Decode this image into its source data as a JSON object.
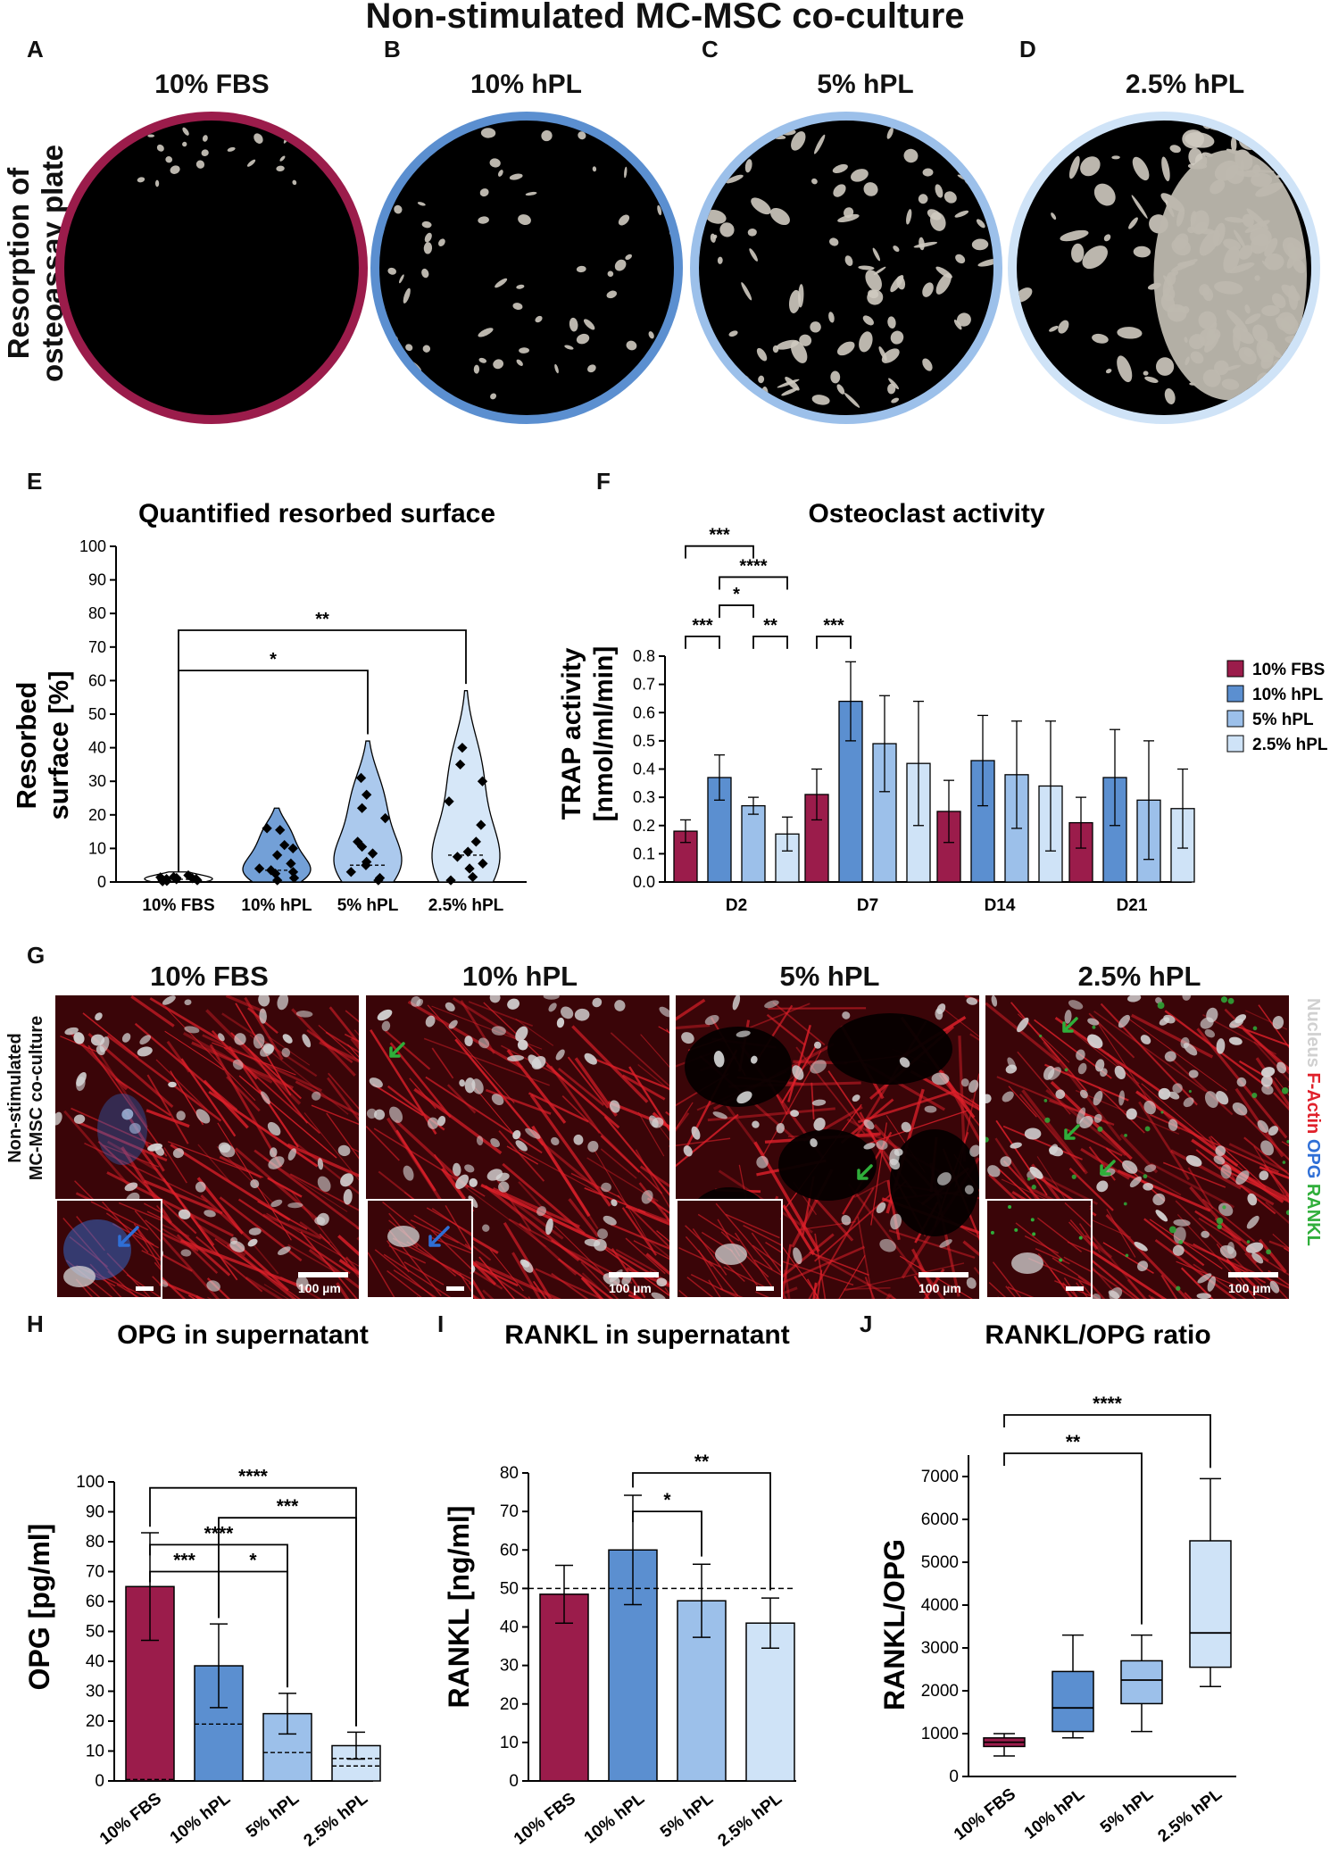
{
  "figure_title": "Non-stimulated MC-MSC co-culture",
  "panel_labels": {
    "A": "A",
    "B": "B",
    "C": "C",
    "D": "D",
    "E": "E",
    "F": "F",
    "G": "G",
    "H": "H",
    "I": "I",
    "J": "J"
  },
  "groups": [
    "10% FBS",
    "10% hPL",
    "5% hPL",
    "2.5% hPL"
  ],
  "colors": {
    "fbs": "#9b1c4b",
    "hpl10": "#5b8fd0",
    "hpl5": "#9cc0ea",
    "hpl25": "#cfe3f7",
    "axis": "#000000"
  },
  "row_a": {
    "side_label_line1": "Resorption of",
    "side_label_line2": "osteoassay plate",
    "dish_titles": [
      "10% FBS",
      "10% hPL",
      "5% hPL",
      "2.5% hPL"
    ],
    "resorption_fraction": [
      0.03,
      0.18,
      0.38,
      0.55
    ]
  },
  "row_g": {
    "side_label_line1": "Non-stimulated",
    "side_label_line2": "MC-MSC co-culture",
    "titles": [
      "10% FBS",
      "10% hPL",
      "5% hPL",
      "2.5% hPL"
    ],
    "scale_text": "100 µm",
    "stain_legend": {
      "nucleus": "Nucleus",
      "factin": "F-Actin",
      "opg": "OPG",
      "rankl": "RANKL"
    },
    "stain_colors": {
      "nucleus": "#d6d6d6",
      "factin": "#e0202a",
      "opg": "#2f6fd6",
      "rankl": "#2fae3a"
    }
  },
  "chart_data": [
    {
      "id": "E",
      "type": "violin",
      "title": "Quantified resorbed surface",
      "ylabel_line1": "Resorbed",
      "ylabel_line2": "surface [%]",
      "categories": [
        "10% FBS",
        "10% hPL",
        "5% hPL",
        "2.5% hPL"
      ],
      "ylim": [
        0,
        100
      ],
      "yticks": [
        0,
        10,
        20,
        30,
        40,
        50,
        60,
        70,
        80,
        90,
        100
      ],
      "points": [
        [
          0.3,
          0.6,
          0.9,
          1.2,
          1.5,
          0.8,
          1.1,
          0.5,
          1.4,
          2.0,
          0.2,
          0.9
        ],
        [
          0.5,
          1.2,
          2.5,
          3.0,
          4.0,
          5.5,
          8.0,
          10.0,
          11.0,
          15.5,
          16.0,
          3.5
        ],
        [
          0.5,
          1.2,
          3.0,
          6.0,
          8.5,
          10.5,
          12.0,
          19.0,
          22.0,
          26.0,
          31.0,
          5.0
        ],
        [
          0.5,
          1.5,
          4.0,
          5.5,
          7.5,
          12.0,
          17.0,
          24.0,
          30.0,
          35.0,
          40.0,
          9.0
        ]
      ],
      "violin_range": [
        [
          0,
          3
        ],
        [
          0,
          22
        ],
        [
          0,
          42
        ],
        [
          0,
          57
        ]
      ],
      "medians": [
        0.8,
        3.5,
        5.0,
        8.0
      ],
      "significance": [
        {
          "from": 0,
          "to": 2,
          "label": "*",
          "y": 63
        },
        {
          "from": 0,
          "to": 3,
          "label": "**",
          "y": 75
        }
      ]
    },
    {
      "id": "F",
      "type": "bar",
      "title": "Osteoclast activity",
      "ylabel_line1": "TRAP activity",
      "ylabel_line2": "[nmol/ml/min]",
      "categories": [
        "D2",
        "D7",
        "D14",
        "D21"
      ],
      "ylim": [
        0,
        0.8
      ],
      "yticks": [
        0.0,
        0.1,
        0.2,
        0.3,
        0.4,
        0.5,
        0.6,
        0.7,
        0.8
      ],
      "series": [
        {
          "name": "10% FBS",
          "values": [
            0.18,
            0.31,
            0.25,
            0.21
          ],
          "errors": [
            0.04,
            0.09,
            0.11,
            0.09
          ]
        },
        {
          "name": "10% hPL",
          "values": [
            0.37,
            0.64,
            0.43,
            0.37
          ],
          "errors": [
            0.08,
            0.14,
            0.16,
            0.17
          ]
        },
        {
          "name": "5% hPL",
          "values": [
            0.27,
            0.49,
            0.38,
            0.29
          ],
          "errors": [
            0.03,
            0.17,
            0.19,
            0.21
          ]
        },
        {
          "name": "2.5% hPL",
          "values": [
            0.17,
            0.42,
            0.34,
            0.26
          ],
          "errors": [
            0.06,
            0.22,
            0.23,
            0.14
          ]
        }
      ],
      "significance": [
        {
          "cat": 0,
          "from": 0,
          "to": 1,
          "label": "***",
          "level": 0.87
        },
        {
          "cat": 0,
          "from": 2,
          "to": 3,
          "label": "**",
          "level": 0.87
        },
        {
          "cat": 0,
          "from": 1,
          "to": 2,
          "label": "*",
          "level": 0.98
        },
        {
          "cat": 0,
          "from": 1,
          "to": 3,
          "label": "****",
          "level": 1.08
        },
        {
          "cat": 0,
          "from": 0,
          "to": 2,
          "label": "***",
          "level": 1.19
        },
        {
          "cat": 1,
          "from": 0,
          "to": 1,
          "label": "***",
          "level": 0.87
        }
      ],
      "legend": [
        "10% FBS",
        "10% hPL",
        "5% hPL",
        "2.5% hPL"
      ]
    },
    {
      "id": "H",
      "type": "bar",
      "title": "OPG in supernatant",
      "ylabel": "OPG [pg/ml]",
      "categories": [
        "10% FBS",
        "10% hPL",
        "5% hPL",
        "2.5% hPL"
      ],
      "ylim": [
        0,
        100
      ],
      "yticks": [
        0,
        10,
        20,
        30,
        40,
        50,
        60,
        70,
        80,
        90,
        100
      ],
      "values": [
        65.0,
        38.5,
        22.5,
        11.8
      ],
      "errors": [
        18.0,
        14.0,
        6.8,
        4.5
      ],
      "dashed_ref": [
        0.5,
        19.0,
        9.5,
        7.5
      ],
      "dashed_ref2": [
        null,
        null,
        null,
        5.0
      ],
      "significance": [
        {
          "from": 0,
          "to": 1,
          "label": "***",
          "y": 70
        },
        {
          "from": 1,
          "to": 2,
          "label": "*",
          "y": 70
        },
        {
          "from": 0,
          "to": 2,
          "label": "****",
          "y": 79
        },
        {
          "from": 1,
          "to": 3,
          "label": "***",
          "y": 88
        },
        {
          "from": 0,
          "to": 3,
          "label": "****",
          "y": 98
        }
      ]
    },
    {
      "id": "I",
      "type": "bar",
      "title": "RANKL in supernatant",
      "ylabel": "RANKL [ng/ml]",
      "categories": [
        "10% FBS",
        "10% hPL",
        "5% hPL",
        "2.5% hPL"
      ],
      "ylim": [
        0,
        80
      ],
      "yticks": [
        0,
        10,
        20,
        30,
        40,
        50,
        60,
        70,
        80
      ],
      "values": [
        48.5,
        60.0,
        46.8,
        41.0
      ],
      "errors": [
        7.5,
        14.2,
        9.5,
        6.5
      ],
      "reference_line": 50,
      "significance": [
        {
          "from": 1,
          "to": 2,
          "label": "*",
          "y": 70
        },
        {
          "from": 1,
          "to": 3,
          "label": "**",
          "y": 80
        }
      ]
    },
    {
      "id": "J",
      "type": "box",
      "title": "RANKL/OPG ratio",
      "ylabel": "RANKL/OPG",
      "categories": [
        "10% FBS",
        "10% hPL",
        "5% hPL",
        "2.5% hPL"
      ],
      "ylim": [
        0,
        7500
      ],
      "yticks": [
        0,
        1000,
        2000,
        3000,
        4000,
        5000,
        6000,
        7000
      ],
      "boxes": [
        {
          "min": 480,
          "q1": 700,
          "median": 800,
          "q3": 900,
          "max": 1000
        },
        {
          "min": 900,
          "q1": 1050,
          "median": 1600,
          "q3": 2450,
          "max": 3300
        },
        {
          "min": 1050,
          "q1": 1700,
          "median": 2250,
          "q3": 2700,
          "max": 3300
        },
        {
          "min": 2100,
          "q1": 2550,
          "median": 3350,
          "q3": 5500,
          "max": 6950
        }
      ],
      "significance": [
        {
          "from": 0,
          "to": 2,
          "label": "**",
          "y": 8300
        },
        {
          "from": 0,
          "to": 3,
          "label": "****",
          "y": 10000
        }
      ]
    }
  ]
}
